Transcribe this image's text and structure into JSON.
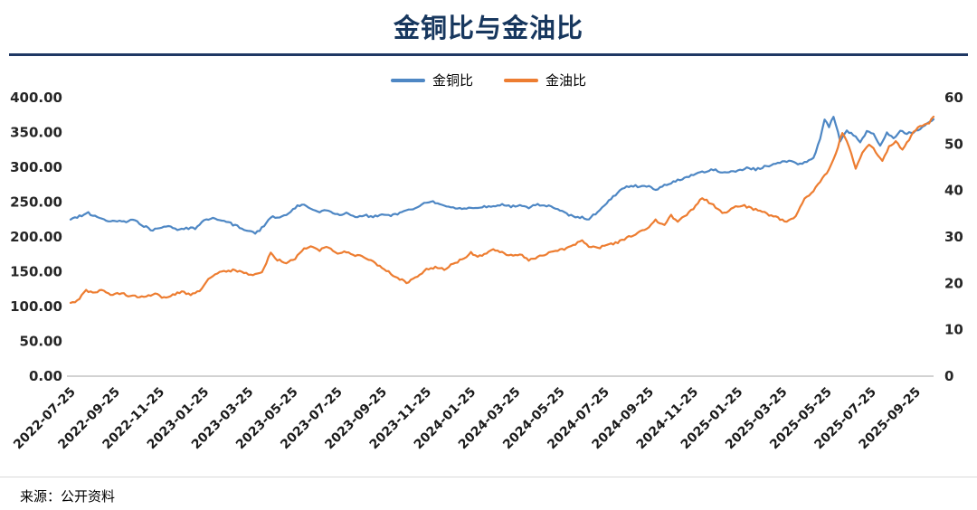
{
  "title": "金铜比与金油比",
  "source": "来源：公开资料",
  "colors": {
    "blue": "#4E87C4",
    "orange": "#ED7D31",
    "title": "#17375E",
    "rule": "#1F3864",
    "axis_line": "#a6a6a6"
  },
  "chart_data": {
    "type": "line",
    "title": "金铜比与金油比",
    "legend": [
      "金铜比",
      "金油比"
    ],
    "legend_position": "top-center",
    "grid": false,
    "x_domain": [
      0,
      38.8
    ],
    "x_tick_positions": [
      0,
      2,
      4,
      6,
      8,
      10,
      12,
      14,
      16,
      18,
      20,
      22,
      24,
      26,
      28,
      30,
      32,
      34,
      36,
      38
    ],
    "x_tick_labels": [
      "2022-07-25",
      "2022-09-25",
      "2022-11-25",
      "2023-01-25",
      "2023-03-25",
      "2023-05-25",
      "2023-07-25",
      "2023-09-25",
      "2023-11-25",
      "2024-01-25",
      "2024-03-25",
      "2024-05-25",
      "2024-07-25",
      "2024-09-25",
      "2024-11-25",
      "2025-01-25",
      "2025-03-25",
      "2025-05-25",
      "2025-07-25",
      "2025-09-25"
    ],
    "left_axis": {
      "min": 0,
      "max": 400,
      "ticks": [
        "0.00",
        "50.00",
        "100.00",
        "150.00",
        "200.00",
        "250.00",
        "300.00",
        "350.00",
        "400.00"
      ]
    },
    "right_axis": {
      "min": 0,
      "max": 60,
      "ticks": [
        "0",
        "10",
        "20",
        "30",
        "40",
        "50",
        "60"
      ]
    },
    "series": [
      {
        "name": "金铜比",
        "axis": "left",
        "color": "#4E87C4",
        "points": [
          [
            0,
            225
          ],
          [
            0.4,
            230
          ],
          [
            0.8,
            234
          ],
          [
            1.2,
            228
          ],
          [
            1.6,
            223
          ],
          [
            2,
            224
          ],
          [
            2.4,
            221
          ],
          [
            2.8,
            224
          ],
          [
            3.2,
            218
          ],
          [
            3.6,
            210
          ],
          [
            4,
            213
          ],
          [
            4.4,
            216
          ],
          [
            4.8,
            211
          ],
          [
            5.2,
            213
          ],
          [
            5.6,
            212
          ],
          [
            6,
            224
          ],
          [
            6.4,
            226
          ],
          [
            6.8,
            223
          ],
          [
            7.2,
            219
          ],
          [
            7.6,
            214
          ],
          [
            8,
            208
          ],
          [
            8.3,
            205
          ],
          [
            8.7,
            215
          ],
          [
            9,
            229
          ],
          [
            9.4,
            227
          ],
          [
            9.8,
            235
          ],
          [
            10.2,
            244
          ],
          [
            10.5,
            246
          ],
          [
            10.8,
            240
          ],
          [
            11.2,
            236
          ],
          [
            11.6,
            239
          ],
          [
            12,
            232
          ],
          [
            12.4,
            234
          ],
          [
            12.8,
            229
          ],
          [
            13.2,
            231
          ],
          [
            13.6,
            229
          ],
          [
            14,
            233
          ],
          [
            14.4,
            231
          ],
          [
            14.8,
            234
          ],
          [
            15.2,
            238
          ],
          [
            15.6,
            243
          ],
          [
            16,
            249
          ],
          [
            16.3,
            251
          ],
          [
            16.7,
            245
          ],
          [
            17,
            243
          ],
          [
            17.4,
            240
          ],
          [
            17.8,
            242
          ],
          [
            18.2,
            240
          ],
          [
            18.6,
            244
          ],
          [
            19,
            243
          ],
          [
            19.4,
            247
          ],
          [
            19.8,
            244
          ],
          [
            20.2,
            246
          ],
          [
            20.6,
            242
          ],
          [
            21,
            247
          ],
          [
            21.4,
            245
          ],
          [
            21.8,
            240
          ],
          [
            22.2,
            235
          ],
          [
            22.6,
            229
          ],
          [
            23,
            228
          ],
          [
            23.3,
            226
          ],
          [
            23.7,
            236
          ],
          [
            24,
            246
          ],
          [
            24.4,
            258
          ],
          [
            24.8,
            270
          ],
          [
            25.2,
            274
          ],
          [
            25.6,
            272
          ],
          [
            26,
            273
          ],
          [
            26.3,
            267
          ],
          [
            26.7,
            274
          ],
          [
            27,
            278
          ],
          [
            27.4,
            283
          ],
          [
            27.8,
            287
          ],
          [
            28.2,
            292
          ],
          [
            28.6,
            294
          ],
          [
            29,
            297
          ],
          [
            29.3,
            291
          ],
          [
            29.7,
            295
          ],
          [
            30,
            294
          ],
          [
            30.4,
            299
          ],
          [
            30.8,
            297
          ],
          [
            31.2,
            301
          ],
          [
            31.6,
            304
          ],
          [
            32,
            307
          ],
          [
            32.3,
            310
          ],
          [
            32.7,
            304
          ],
          [
            33,
            307
          ],
          [
            33.4,
            312
          ],
          [
            33.7,
            340
          ],
          [
            33.9,
            368
          ],
          [
            34.1,
            358
          ],
          [
            34.3,
            374
          ],
          [
            34.6,
            338
          ],
          [
            34.9,
            352
          ],
          [
            35.2,
            346
          ],
          [
            35.5,
            337
          ],
          [
            35.8,
            352
          ],
          [
            36.1,
            349
          ],
          [
            36.4,
            331
          ],
          [
            36.7,
            349
          ],
          [
            37,
            341
          ],
          [
            37.3,
            352
          ],
          [
            37.6,
            348
          ],
          [
            37.9,
            351
          ],
          [
            38.2,
            355
          ],
          [
            38.5,
            362
          ],
          [
            38.8,
            369
          ]
        ]
      },
      {
        "name": "金油比",
        "axis": "right",
        "color": "#ED7D31",
        "points": [
          [
            0,
            15.8
          ],
          [
            0.3,
            16.3
          ],
          [
            0.7,
            18.4
          ],
          [
            1,
            17.9
          ],
          [
            1.4,
            18.6
          ],
          [
            1.8,
            17.6
          ],
          [
            2.2,
            17.9
          ],
          [
            2.6,
            17.4
          ],
          [
            3,
            17.1
          ],
          [
            3.4,
            17.4
          ],
          [
            3.8,
            17.7
          ],
          [
            4.2,
            16.9
          ],
          [
            4.6,
            17.6
          ],
          [
            5,
            18.1
          ],
          [
            5.4,
            17.6
          ],
          [
            5.8,
            18.4
          ],
          [
            6.2,
            20.8
          ],
          [
            6.6,
            22.1
          ],
          [
            7,
            22.6
          ],
          [
            7.4,
            22.9
          ],
          [
            7.8,
            22.2
          ],
          [
            8.2,
            21.8
          ],
          [
            8.6,
            22.4
          ],
          [
            9,
            26.6
          ],
          [
            9.3,
            25.1
          ],
          [
            9.7,
            24.4
          ],
          [
            10.1,
            25.3
          ],
          [
            10.5,
            27.4
          ],
          [
            10.9,
            28
          ],
          [
            11.2,
            27.2
          ],
          [
            11.6,
            27.8
          ],
          [
            12,
            26.6
          ],
          [
            12.4,
            26.9
          ],
          [
            12.8,
            26.1
          ],
          [
            13.2,
            25.7
          ],
          [
            13.6,
            24.6
          ],
          [
            14,
            23.4
          ],
          [
            14.4,
            22.1
          ],
          [
            14.8,
            21
          ],
          [
            15.1,
            20.2
          ],
          [
            15.5,
            21.2
          ],
          [
            16,
            23.1
          ],
          [
            16.4,
            23.4
          ],
          [
            16.8,
            23
          ],
          [
            17.2,
            24.3
          ],
          [
            17.6,
            25.1
          ],
          [
            18,
            26.6
          ],
          [
            18.3,
            25.6
          ],
          [
            18.7,
            26.4
          ],
          [
            19,
            27.3
          ],
          [
            19.4,
            26.6
          ],
          [
            19.8,
            26.1
          ],
          [
            20.2,
            26.3
          ],
          [
            20.6,
            25.1
          ],
          [
            21,
            25.6
          ],
          [
            21.4,
            26.3
          ],
          [
            21.8,
            26.9
          ],
          [
            22.2,
            27.3
          ],
          [
            22.6,
            28.2
          ],
          [
            23,
            29.3
          ],
          [
            23.3,
            28.1
          ],
          [
            23.7,
            27.6
          ],
          [
            24,
            28
          ],
          [
            24.4,
            28.6
          ],
          [
            24.8,
            29.2
          ],
          [
            25.2,
            30.3
          ],
          [
            25.6,
            31.1
          ],
          [
            26,
            32.2
          ],
          [
            26.3,
            33.6
          ],
          [
            26.7,
            32.4
          ],
          [
            27,
            34.6
          ],
          [
            27.3,
            33.1
          ],
          [
            27.7,
            34.9
          ],
          [
            28,
            36.1
          ],
          [
            28.4,
            38.4
          ],
          [
            28.8,
            37.2
          ],
          [
            29.1,
            35.9
          ],
          [
            29.4,
            35.1
          ],
          [
            29.8,
            36.4
          ],
          [
            30.2,
            36.9
          ],
          [
            30.6,
            36.1
          ],
          [
            31,
            35.6
          ],
          [
            31.4,
            34.7
          ],
          [
            31.8,
            34.1
          ],
          [
            32.2,
            33.2
          ],
          [
            32.6,
            34.6
          ],
          [
            33,
            38.1
          ],
          [
            33.4,
            39.9
          ],
          [
            33.8,
            42.5
          ],
          [
            34.1,
            44.6
          ],
          [
            34.4,
            48
          ],
          [
            34.7,
            52.4
          ],
          [
            35,
            49.6
          ],
          [
            35.3,
            44.6
          ],
          [
            35.6,
            48.1
          ],
          [
            35.9,
            50.1
          ],
          [
            36.2,
            48.4
          ],
          [
            36.5,
            46.2
          ],
          [
            36.8,
            49.6
          ],
          [
            37.1,
            50.6
          ],
          [
            37.4,
            48.6
          ],
          [
            37.7,
            51.1
          ],
          [
            38,
            53.1
          ],
          [
            38.3,
            54.1
          ],
          [
            38.6,
            54.6
          ],
          [
            38.8,
            55.9
          ]
        ]
      }
    ]
  }
}
